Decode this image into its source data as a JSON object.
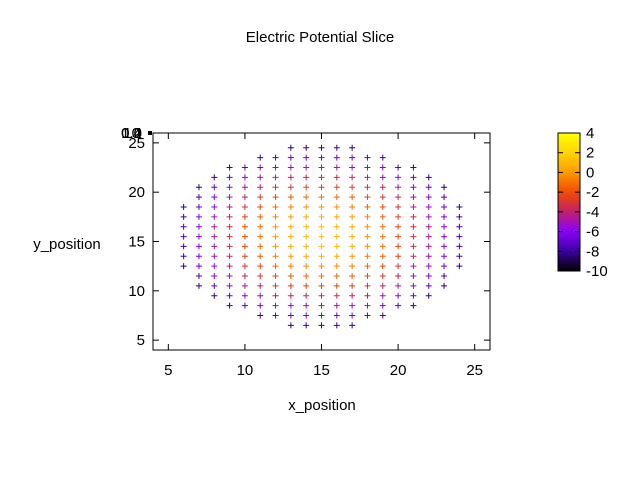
{
  "chart_data": {
    "type": "scatter",
    "title": "Electric Potential Slice",
    "xlabel": "x_position",
    "ylabel": "y_position",
    "xlim": [
      4,
      26
    ],
    "ylim": [
      4,
      26
    ],
    "xticks": [
      5,
      10,
      15,
      20,
      25
    ],
    "yticks": [
      5,
      10,
      15,
      20,
      25
    ],
    "marker": "plus",
    "colorbar": {
      "range": [
        -10,
        4
      ],
      "ticks": [
        4,
        2,
        0,
        -2,
        -4,
        -6,
        -8,
        -10
      ],
      "colormap": [
        "#000000",
        "#3a00a0",
        "#8a00ff",
        "#c0206a",
        "#ef4b00",
        "#ff9a00",
        "#ffd400",
        "#ffff00"
      ]
    },
    "stray_labels": [
      "10",
      "0.4",
      "0.2",
      "1.0"
    ],
    "grid": {
      "center": [
        15,
        15.5
      ],
      "x_range": [
        6,
        24
      ],
      "y_range": [
        6.5,
        24.5
      ],
      "step": 1,
      "radius_x": 9.6,
      "radius_y": 9.3,
      "potential_center": 1.5,
      "potential_edge": -8.5
    }
  }
}
